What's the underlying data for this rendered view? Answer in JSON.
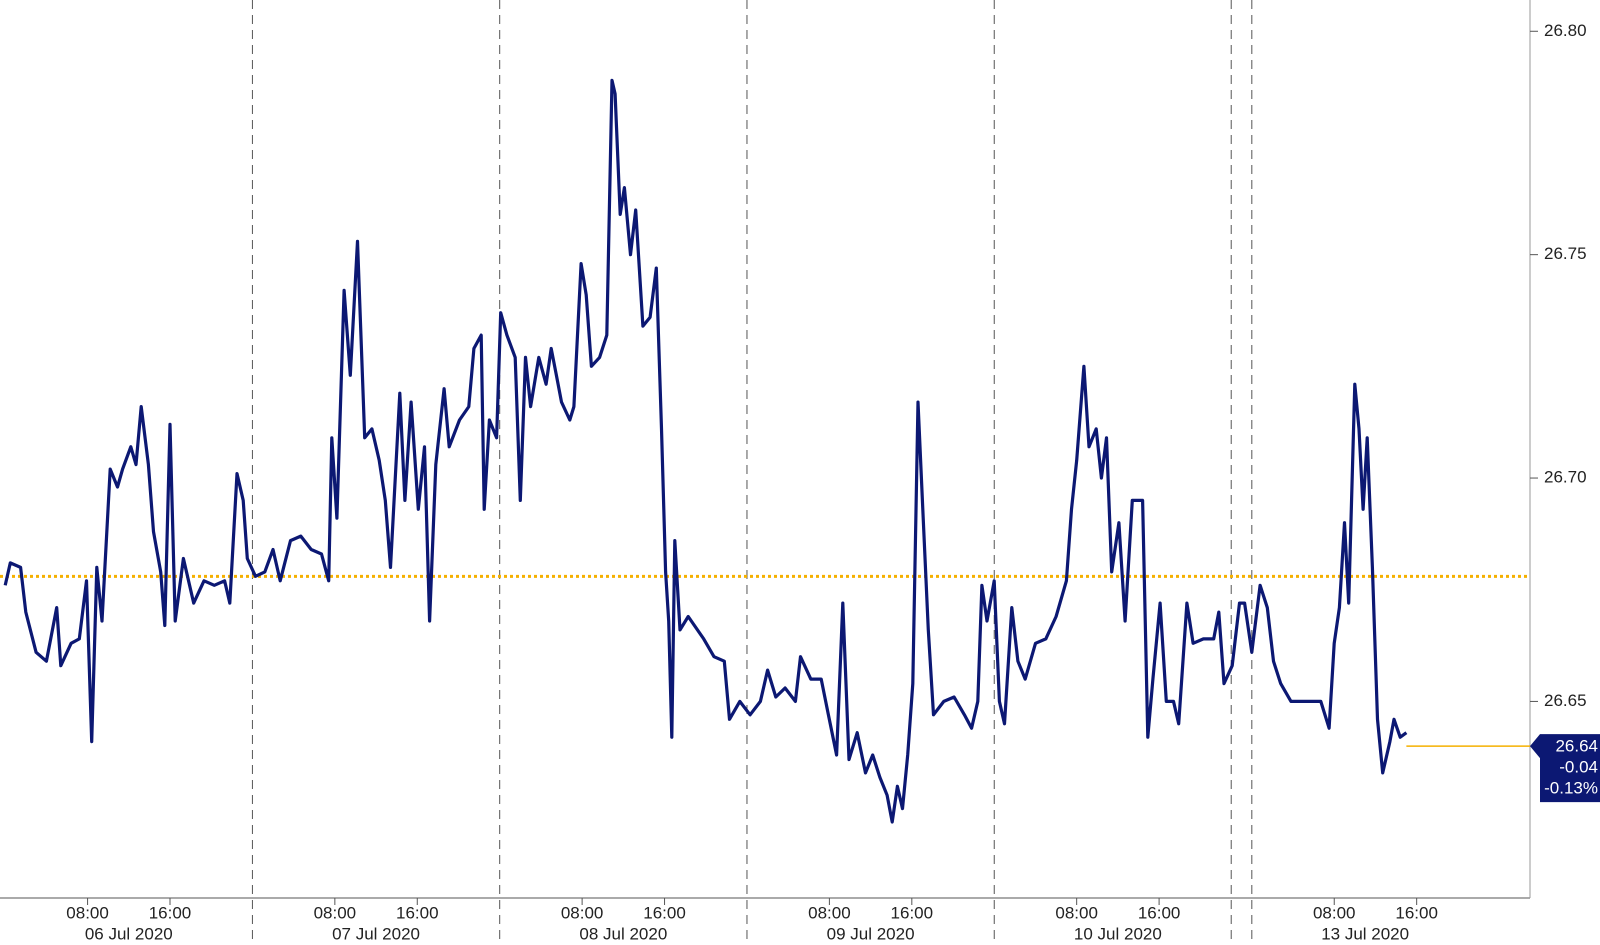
{
  "chart_data": {
    "type": "line",
    "color": "#0c1873",
    "x": [
      0,
      0.5,
      1.5,
      2.0,
      3.0,
      4.0,
      5.0,
      5.4,
      6.4,
      7.2,
      7.9,
      8.4,
      8.9,
      9.4,
      10.2,
      10.9,
      11.4,
      12.2,
      12.7,
      13.2,
      13.9,
      14.4,
      15.1,
      15.5,
      16.0,
      16.5,
      17.3,
      18.3,
      19.3,
      20.3,
      21.3,
      21.8,
      22.5,
      23.1,
      23.5,
      24.3,
      25.2,
      26.0,
      26.7,
      27.7,
      28.7,
      29.7,
      30.7,
      31.4,
      31.7,
      32.2,
      32.9,
      33.5,
      34.2,
      34.9,
      35.6,
      36.3,
      36.9,
      37.4,
      38.3,
      38.8,
      39.4,
      40.1,
      40.7,
      41.2,
      41.8,
      42.6,
      43.1,
      44.1,
      45.0,
      45.5,
      46.2,
      46.5,
      47.0,
      47.7,
      48.1,
      48.7,
      49.5,
      50.0,
      50.5,
      51.0,
      51.8,
      52.5,
      53.0,
      53.5,
      54.0,
      54.8,
      55.2,
      55.9,
      56.4,
      56.9,
      57.7,
      58.4,
      58.9,
      59.2,
      59.7,
      60.1,
      60.7,
      61.2,
      61.9,
      62.6,
      63.2,
      63.7,
      64.1,
      64.4,
      64.7,
      65.0,
      65.5,
      66.3,
      67.8,
      68.8,
      69.8,
      70.3,
      71.3,
      72.3,
      73.3,
      74.0,
      74.8,
      75.7,
      76.7,
      77.2,
      78.2,
      79.2,
      79.9,
      80.7,
      81.3,
      81.9,
      82.7,
      83.5,
      84.2,
      84.9,
      85.6,
      86.1,
      86.6,
      87.1,
      87.6,
      88.1,
      88.6,
      89.1,
      89.6,
      90.1,
      91.1,
      92.1,
      93.1,
      93.8,
      94.4,
      94.8,
      95.3,
      96.0,
      96.5,
      97.0,
      97.7,
      98.3,
      99.0,
      100.0,
      101.0,
      102.0,
      103.0,
      103.5,
      104.0,
      104.7,
      105.2,
      105.9,
      106.4,
      106.9,
      107.4,
      108.1,
      108.7,
      109.4,
      110.4,
      110.9,
      111.4,
      112.1,
      112.7,
      113.4,
      113.9,
      114.7,
      115.3,
      116.3,
      117.3,
      117.8,
      118.3,
      119.1,
      119.8,
      120.3,
      121.0,
      121.8,
      122.5,
      123.1,
      123.8,
      124.8,
      125.7,
      126.7,
      127.7,
      128.5,
      129.0,
      129.5,
      130.0,
      130.4,
      131.0,
      131.4,
      131.8,
      132.2,
      132.7,
      133.2,
      133.7,
      134.4,
      134.8,
      135.4,
      136.0
    ],
    "values": [
      26.676,
      26.681,
      26.68,
      26.67,
      26.661,
      26.659,
      26.671,
      26.658,
      26.663,
      26.664,
      26.677,
      26.641,
      26.68,
      26.668,
      26.702,
      26.698,
      26.702,
      26.707,
      26.703,
      26.716,
      26.703,
      26.688,
      26.679,
      26.667,
      26.712,
      26.668,
      26.682,
      26.672,
      26.677,
      26.676,
      26.677,
      26.672,
      26.701,
      26.695,
      26.682,
      26.678,
      26.679,
      26.684,
      26.677,
      26.686,
      26.687,
      26.684,
      26.683,
      26.677,
      26.709,
      26.691,
      26.742,
      26.723,
      26.753,
      26.709,
      26.711,
      26.704,
      26.695,
      26.68,
      26.719,
      26.695,
      26.717,
      26.693,
      26.707,
      26.668,
      26.703,
      26.72,
      26.707,
      26.713,
      26.716,
      26.729,
      26.732,
      26.693,
      26.713,
      26.709,
      26.737,
      26.732,
      26.727,
      26.695,
      26.727,
      26.716,
      26.727,
      26.721,
      26.729,
      26.723,
      26.717,
      26.713,
      26.716,
      26.748,
      26.741,
      26.725,
      26.727,
      26.732,
      26.789,
      26.786,
      26.759,
      26.765,
      26.75,
      26.76,
      26.734,
      26.736,
      26.747,
      26.711,
      26.679,
      26.668,
      26.642,
      26.686,
      26.666,
      26.669,
      26.664,
      26.66,
      26.659,
      26.646,
      26.65,
      26.647,
      26.65,
      26.657,
      26.651,
      26.653,
      26.65,
      26.66,
      26.655,
      26.655,
      26.647,
      26.638,
      26.672,
      26.637,
      26.643,
      26.634,
      26.638,
      26.633,
      26.629,
      26.623,
      26.631,
      26.626,
      26.638,
      26.654,
      26.717,
      26.691,
      26.666,
      26.647,
      26.65,
      26.651,
      26.647,
      26.644,
      26.65,
      26.676,
      26.668,
      26.677,
      26.65,
      26.645,
      26.671,
      26.659,
      26.655,
      26.663,
      26.664,
      26.669,
      26.677,
      26.693,
      26.704,
      26.725,
      26.707,
      26.711,
      26.7,
      26.709,
      26.679,
      26.69,
      26.668,
      26.695,
      26.695,
      26.642,
      26.655,
      26.672,
      26.65,
      26.65,
      26.645,
      26.672,
      26.663,
      26.664,
      26.664,
      26.67,
      26.654,
      26.658,
      26.672,
      26.672,
      26.661,
      26.676,
      26.671,
      26.659,
      26.654,
      26.65,
      26.65,
      26.65,
      26.65,
      26.644,
      26.663,
      26.671,
      26.69,
      26.672,
      26.721,
      26.711,
      26.693,
      26.709,
      26.68,
      26.646,
      26.634,
      26.641,
      26.646,
      26.642,
      26.643
    ],
    "xlim": [
      -0.5,
      148
    ],
    "xticks": [
      {
        "value": 8,
        "label": "08:00"
      },
      {
        "value": 16,
        "label": "16:00"
      },
      {
        "value": 32,
        "label": "08:00"
      },
      {
        "value": 40,
        "label": "16:00"
      },
      {
        "value": 56,
        "label": "08:00"
      },
      {
        "value": 64,
        "label": "16:00"
      },
      {
        "value": 80,
        "label": "08:00"
      },
      {
        "value": 88,
        "label": "16:00"
      },
      {
        "value": 104,
        "label": "08:00"
      },
      {
        "value": 112,
        "label": "16:00"
      },
      {
        "value": 129,
        "label": "08:00"
      },
      {
        "value": 137,
        "label": "16:00"
      }
    ],
    "day_labels": [
      {
        "value": 12,
        "label": "06 Jul 2020"
      },
      {
        "value": 36,
        "label": "07 Jul 2020"
      },
      {
        "value": 60,
        "label": "08 Jul 2020"
      },
      {
        "value": 84,
        "label": "09 Jul 2020"
      },
      {
        "value": 108,
        "label": "10 Jul 2020"
      },
      {
        "value": 132,
        "label": "13 Jul 2020"
      }
    ],
    "separators": [
      24,
      48,
      72,
      96,
      119,
      121
    ],
    "ylim": [
      26.606,
      26.807
    ],
    "yticks": [
      26.65,
      {
        "value": 26.7,
        "label": "26.70"
      },
      26.75,
      {
        "value": 26.8,
        "label": "26.80"
      }
    ],
    "reference_line": {
      "value": 26.678,
      "color": "#f5b000"
    },
    "last_price": {
      "value": 26.64,
      "change": -0.04,
      "pct_change": {
        "value": -0.13,
        "label": "-0.13%"
      },
      "color": "#f5b000"
    }
  }
}
